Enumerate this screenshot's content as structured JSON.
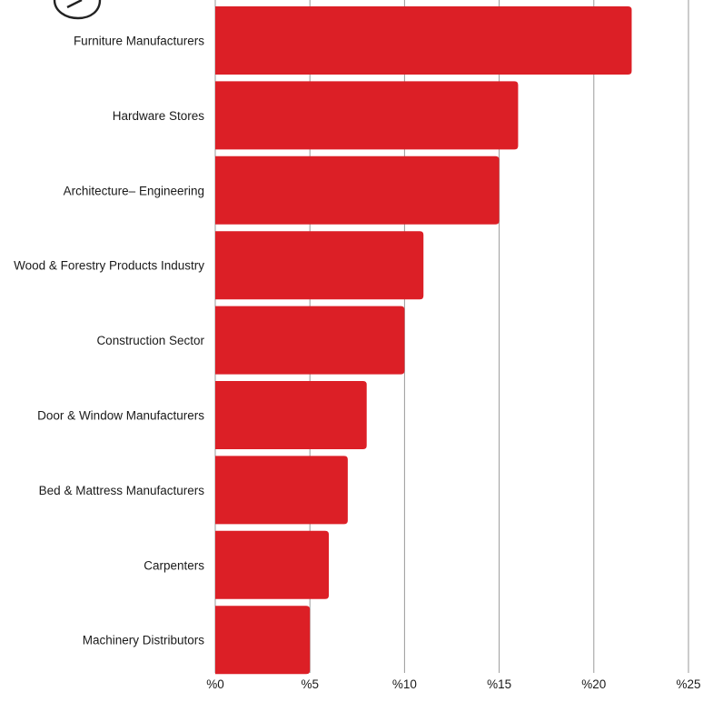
{
  "chart_data": {
    "type": "bar",
    "orientation": "horizontal",
    "categories": [
      "Furniture Manufacturers",
      "Hardware Stores",
      "Architecture– Engineering",
      "Wood & Forestry Products Industry",
      "Construction Sector",
      "Door & Window Manufacturers",
      "Bed & Mattress Manufacturers",
      "Carpenters",
      "Machinery Distributors"
    ],
    "values": [
      22,
      16,
      15,
      11,
      10,
      8,
      7,
      6,
      5
    ],
    "xlim": [
      0,
      25
    ],
    "x_ticks": [
      0,
      5,
      10,
      15,
      20,
      25
    ],
    "x_tick_labels": [
      "%0",
      "%5",
      "%10",
      "%15",
      "%20",
      "%25"
    ],
    "title": "",
    "xlabel": "",
    "ylabel": "",
    "grid": true,
    "bar_color": "#dc1f26",
    "grid_color": "#9a9a9a"
  }
}
